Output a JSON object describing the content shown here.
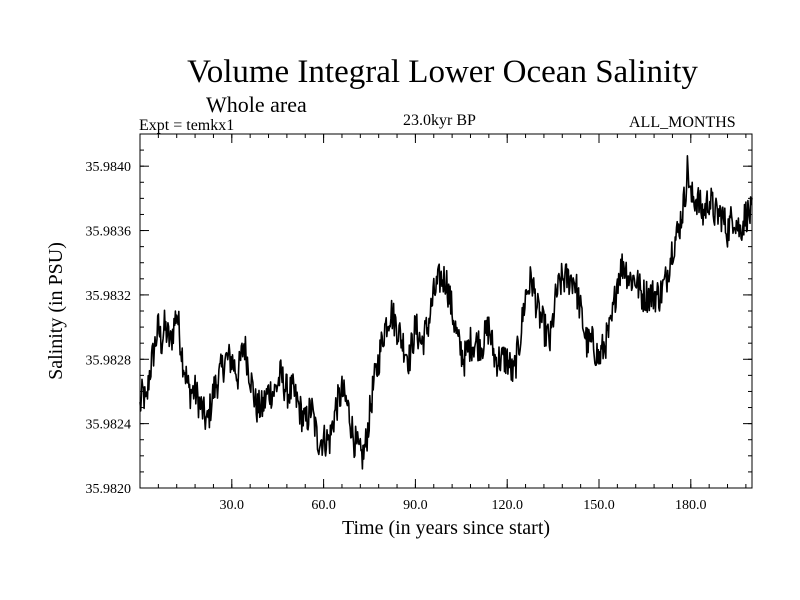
{
  "header": {
    "title": "Volume Integral Lower Ocean Salinity",
    "subtitle": "Whole area",
    "experiment": "Expt = temkx1",
    "period": "23.0kyr BP",
    "months": "ALL_MONTHS"
  },
  "chart_data": {
    "type": "line",
    "title": "Volume Integral Lower Ocean Salinity",
    "xlabel": "Time (in years since start)",
    "ylabel": "Salinity (in PSU)",
    "xlim": [
      0,
      200
    ],
    "ylim": [
      35.982,
      35.9842
    ],
    "xticks": [
      30,
      60,
      90,
      120,
      150,
      180
    ],
    "xtick_labels": [
      "30.0",
      "60.0",
      "90.0",
      "120.0",
      "150.0",
      "180.0"
    ],
    "yticks": [
      35.982,
      35.9824,
      35.9828,
      35.9832,
      35.9836,
      35.984
    ],
    "ytick_labels": [
      "35.9820",
      "35.9824",
      "35.9828",
      "35.9832",
      "35.9836",
      "35.9840"
    ],
    "grid": false,
    "series": [
      {
        "name": "Salinity",
        "x": [
          0,
          1,
          2,
          3,
          4,
          5,
          6,
          7,
          8,
          10,
          12,
          14,
          16,
          18,
          20,
          22,
          24,
          26,
          28,
          30,
          32,
          34,
          36,
          38,
          40,
          42,
          44,
          46,
          48,
          50,
          52,
          54,
          56,
          58,
          60,
          62,
          64,
          66,
          68,
          70,
          72,
          73,
          74,
          76,
          78,
          80,
          82,
          84,
          86,
          88,
          90,
          92,
          94,
          96,
          98,
          100,
          102,
          104,
          106,
          108,
          110,
          112,
          114,
          116,
          118,
          120,
          122,
          124,
          126,
          128,
          130,
          132,
          134,
          136,
          138,
          140,
          142,
          144,
          146,
          148,
          150,
          152,
          154,
          156,
          158,
          160,
          162,
          164,
          166,
          168,
          170,
          172,
          174,
          176,
          178,
          179,
          180,
          182,
          184,
          186,
          188,
          190,
          192,
          194,
          196,
          198,
          200
        ],
        "values": [
          35.9825,
          35.9826,
          35.9825,
          35.9827,
          35.9828,
          35.9829,
          35.983,
          35.9829,
          35.983,
          35.9829,
          35.9831,
          35.9828,
          35.9826,
          35.9826,
          35.9825,
          35.9824,
          35.9826,
          35.9827,
          35.9828,
          35.9828,
          35.9827,
          35.9829,
          35.9827,
          35.9825,
          35.9825,
          35.9826,
          35.9826,
          35.9827,
          35.9826,
          35.9826,
          35.9825,
          35.9824,
          35.9825,
          35.9823,
          35.9823,
          35.9823,
          35.9825,
          35.9826,
          35.9825,
          35.9823,
          35.9822,
          35.9822,
          35.9823,
          35.9826,
          35.9828,
          35.983,
          35.9831,
          35.983,
          35.9829,
          35.9828,
          35.983,
          35.9829,
          35.983,
          35.9832,
          35.9833,
          35.9833,
          35.9831,
          35.9829,
          35.9828,
          35.9829,
          35.9829,
          35.9829,
          35.983,
          35.9828,
          35.9828,
          35.9828,
          35.9827,
          35.9829,
          35.9832,
          35.9833,
          35.9831,
          35.983,
          35.9829,
          35.9832,
          35.9833,
          35.9833,
          35.9833,
          35.9831,
          35.9829,
          35.9829,
          35.9828,
          35.9829,
          35.983,
          35.9833,
          35.9834,
          35.9833,
          35.9833,
          35.9832,
          35.9832,
          35.9832,
          35.9832,
          35.9833,
          35.9835,
          35.9836,
          35.9838,
          35.984,
          35.9838,
          35.9838,
          35.9837,
          35.9838,
          35.9837,
          35.9837,
          35.9836,
          35.9837,
          35.9836,
          35.9837,
          35.9837
        ]
      }
    ]
  }
}
